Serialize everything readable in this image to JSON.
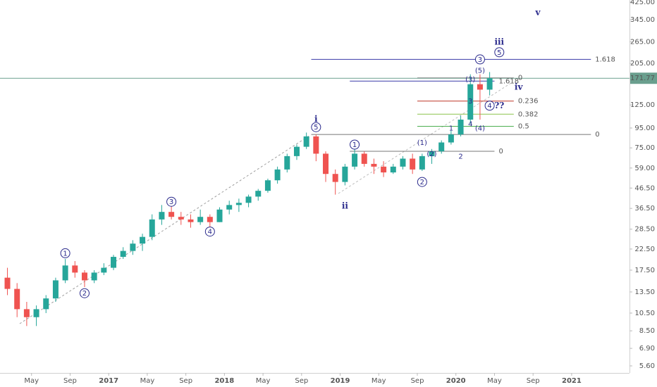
{
  "chart_data": {
    "type": "candlestick",
    "x": [
      "2016-02",
      "2016-03",
      "2016-04",
      "2016-05",
      "2016-06",
      "2016-07",
      "2016-08",
      "2016-09",
      "2016-10",
      "2016-11",
      "2016-12",
      "2017-01",
      "2017-02",
      "2017-03",
      "2017-04",
      "2017-05",
      "2017-06",
      "2017-07",
      "2017-08",
      "2017-09",
      "2017-10",
      "2017-11",
      "2017-12",
      "2018-01",
      "2018-02",
      "2018-03",
      "2018-04",
      "2018-05",
      "2018-06",
      "2018-07",
      "2018-08",
      "2018-09",
      "2018-10",
      "2018-11",
      "2018-12",
      "2019-01",
      "2019-02",
      "2019-03",
      "2019-04",
      "2019-05",
      "2019-06",
      "2019-07",
      "2019-08",
      "2019-09",
      "2019-10",
      "2019-11",
      "2019-12",
      "2020-01",
      "2020-02",
      "2020-03",
      "2020-04"
    ],
    "open": [
      16,
      14,
      11,
      10,
      11,
      12.5,
      15.5,
      18.5,
      17,
      15.5,
      17,
      18,
      20.5,
      22,
      24,
      26,
      32,
      35,
      33,
      32,
      31,
      33,
      31,
      36,
      38,
      39,
      42,
      45,
      51,
      58,
      68,
      76,
      86,
      70,
      55,
      50,
      60,
      70,
      62,
      60,
      56,
      60,
      66,
      58,
      68,
      72,
      80,
      88,
      105,
      160,
      150
    ],
    "high": [
      18,
      15,
      12,
      11.5,
      13,
      16,
      20,
      19.5,
      17.5,
      17.5,
      19,
      21,
      23,
      25,
      27,
      34,
      38,
      38,
      35,
      34,
      36,
      34,
      37,
      40,
      41,
      43,
      46,
      52,
      60,
      70,
      78,
      90,
      88,
      72,
      58,
      62,
      74,
      72,
      66,
      64,
      62,
      68,
      70,
      70,
      74,
      82,
      92,
      110,
      180,
      180,
      185
    ],
    "low": [
      13,
      10,
      9,
      9,
      10.5,
      12,
      15,
      16,
      14.3,
      15,
      16.5,
      17.5,
      20,
      21,
      22,
      25,
      30,
      32,
      30,
      29,
      30,
      29,
      31,
      34,
      35,
      37,
      40,
      44,
      49,
      56,
      65,
      74,
      64,
      50,
      43,
      48,
      58,
      60,
      55,
      53,
      55,
      58,
      55,
      57,
      62,
      70,
      78,
      86,
      100,
      105,
      140
    ],
    "close": [
      14,
      11,
      10,
      11,
      12.5,
      15.5,
      18.5,
      17,
      15.5,
      17,
      18,
      20.5,
      22,
      24,
      26,
      32,
      35,
      33,
      32,
      31,
      33,
      31,
      36,
      38,
      39,
      42,
      45,
      51,
      58,
      68,
      76,
      86,
      70,
      55,
      50,
      60,
      70,
      62,
      60,
      56,
      60,
      66,
      58,
      68,
      72,
      80,
      88,
      105,
      160,
      150,
      171.77
    ],
    "up_color": "#26a69a",
    "down_color": "#ef5350",
    "log_scale": true,
    "grid": false,
    "xlim": [
      "2016-01",
      "2021-07"
    ],
    "ylim": [
      5.15,
      436
    ],
    "yticks": [
      {
        "value": 5.6,
        "label": "5.60"
      },
      {
        "value": 6.9,
        "label": "6.90"
      },
      {
        "value": 8.5,
        "label": "8.50"
      },
      {
        "value": 10.5,
        "label": "10.50"
      },
      {
        "value": 13.5,
        "label": "13.50"
      },
      {
        "value": 17.5,
        "label": "17.50"
      },
      {
        "value": 22.5,
        "label": "22.50"
      },
      {
        "value": 28.5,
        "label": "28.50"
      },
      {
        "value": 36.5,
        "label": "36.50"
      },
      {
        "value": 46.5,
        "label": "46.50"
      },
      {
        "value": 59,
        "label": "59.00"
      },
      {
        "value": 75,
        "label": "75.00"
      },
      {
        "value": 95,
        "label": "95.00"
      },
      {
        "value": 125,
        "label": "125.00"
      },
      {
        "value": 205,
        "label": "205.00"
      },
      {
        "value": 265,
        "label": "265.00"
      },
      {
        "value": 345,
        "label": "345.00"
      },
      {
        "value": 425,
        "label": "425.00"
      }
    ],
    "xticks": [
      {
        "value": "2016-05",
        "label": "May"
      },
      {
        "value": "2016-09",
        "label": "Sep"
      },
      {
        "value": "2017-01",
        "label": "2017"
      },
      {
        "value": "2017-05",
        "label": "May"
      },
      {
        "value": "2017-09",
        "label": "Sep"
      },
      {
        "value": "2018-01",
        "label": "2018"
      },
      {
        "value": "2018-05",
        "label": "May"
      },
      {
        "value": "2018-09",
        "label": "Sep"
      },
      {
        "value": "2019-01",
        "label": "2019"
      },
      {
        "value": "2019-05",
        "label": "May"
      },
      {
        "value": "2019-09",
        "label": "Sep"
      },
      {
        "value": "2020-01",
        "label": "2020"
      },
      {
        "value": "2020-05",
        "label": "May"
      },
      {
        "value": "2020-09",
        "label": "Sep"
      },
      {
        "value": "2021-01",
        "label": "2021"
      }
    ],
    "last_price": 171.77,
    "last_price_color": "#6a9f8e",
    "levels": [
      {
        "label": "1.618",
        "value": 215,
        "from": "2018-10",
        "to": "2021-03",
        "color": "#3a3aa8"
      },
      {
        "label": "1.618",
        "value": 166,
        "from": "2019-02",
        "to": "2020-05",
        "color": "#3a3aa8"
      },
      {
        "label": "0",
        "value": 173,
        "from": "2019-09",
        "to": "2020-07",
        "color": "#9e9e9e"
      },
      {
        "label": "0.236",
        "value": 131,
        "from": "2019-09",
        "to": "2020-07",
        "color": "#c0392b"
      },
      {
        "label": "0.382",
        "value": 112,
        "from": "2019-09",
        "to": "2020-07",
        "color": "#8bc34a"
      },
      {
        "label": "0.5",
        "value": 97,
        "from": "2019-09",
        "to": "2020-07",
        "color": "#4caf50"
      },
      {
        "label": "0",
        "value": 88,
        "from": "2018-10",
        "to": "2021-03",
        "color": "#777777"
      },
      {
        "label": "0",
        "value": 72,
        "from": "2019-02",
        "to": "2020-05",
        "color": "#777777"
      }
    ],
    "annotations": [
      {
        "text": "1",
        "x": "2016-08",
        "y": 21.4,
        "circled": true
      },
      {
        "text": "2",
        "x": "2016-10",
        "y": 13.3,
        "circled": true
      },
      {
        "text": "3",
        "x": "2017-07",
        "y": 39.5,
        "circled": true
      },
      {
        "text": "4",
        "x": "2017-11",
        "y": 27.7,
        "circled": true
      },
      {
        "text": "5",
        "x": "2018-10",
        "y": 96,
        "circled": true
      },
      {
        "text": "i",
        "x": "2018-10",
        "y": 106,
        "roman": true
      },
      {
        "text": "ii",
        "x": "2019-01",
        "y": 37.6,
        "roman": true
      },
      {
        "text": "1",
        "x": "2019-02",
        "y": 78,
        "circled": true
      },
      {
        "text": "2",
        "x": "2019-09",
        "y": 50,
        "circled": true
      },
      {
        "text": "(1)",
        "x": "2019-09",
        "y": 80
      },
      {
        "text": "(2)",
        "x": "2019-10",
        "y": 70
      },
      {
        "text": "1",
        "x": "2019-12",
        "y": 95
      },
      {
        "text": "2",
        "x": "2020-01",
        "y": 68
      },
      {
        "text": "3",
        "x": "2020-02",
        "y": 131
      },
      {
        "text": "4",
        "x": "2020-02",
        "y": 100
      },
      {
        "text": "(3)",
        "x": "2020-02",
        "y": 170
      },
      {
        "text": "(4)",
        "x": "2020-03",
        "y": 95
      },
      {
        "text": "(5)",
        "x": "2020-03",
        "y": 189
      },
      {
        "text": "3",
        "x": "2020-03",
        "y": 215,
        "circled": true
      },
      {
        "text": "4",
        "x": "2020-04",
        "y": 124,
        "circled": true
      },
      {
        "text": "??",
        "x": "2020-05",
        "y": 124,
        "roman": true
      },
      {
        "text": "5",
        "x": "2020-05",
        "y": 234,
        "circled": true
      },
      {
        "text": "iii",
        "x": "2020-05",
        "y": 265,
        "roman": true
      },
      {
        "text": "iv",
        "x": "2020-07",
        "y": 155,
        "roman": true
      },
      {
        "text": "v",
        "x": "2020-09",
        "y": 377,
        "roman": true
      }
    ]
  }
}
